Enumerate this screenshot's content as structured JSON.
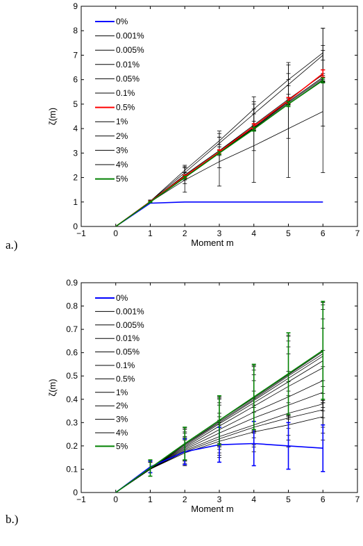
{
  "chart_data": [
    {
      "type": "line",
      "panel_label": "a.)",
      "xlabel": "Moment m",
      "ylabel": "ζ(m)",
      "xlim": [
        -1,
        7
      ],
      "ylim": [
        0,
        9
      ],
      "x_ticks": [
        "−1",
        "0",
        "1",
        "2",
        "3",
        "4",
        "5",
        "6",
        "7"
      ],
      "y_ticks": [
        "0",
        "1",
        "2",
        "3",
        "4",
        "5",
        "6",
        "7",
        "8",
        "9"
      ],
      "legend_position": "top-left",
      "x": [
        0,
        1,
        2,
        3,
        4,
        5,
        6
      ],
      "series": [
        {
          "name": "0%",
          "color": "#0000ff",
          "values": [
            0,
            0.95,
            1.0,
            1.0,
            1.0,
            1.0,
            1.0
          ]
        },
        {
          "name": "0.001%",
          "color": "#000000",
          "values": [
            0,
            1.0,
            1.9,
            2.65,
            3.3,
            4.0,
            4.7
          ],
          "errors": [
            0,
            0.05,
            0.5,
            1.0,
            1.5,
            2.0,
            2.5
          ]
        },
        {
          "name": "0.005%",
          "color": "#000000",
          "values": [
            0,
            1.02,
            2.1,
            3.1,
            4.1,
            5.1,
            6.1
          ],
          "errors": [
            0,
            0.05,
            0.35,
            0.7,
            1.0,
            1.5,
            2.0
          ]
        },
        {
          "name": "0.01%",
          "color": "#000000",
          "values": [
            0,
            1.03,
            2.2,
            3.4,
            4.6,
            5.8,
            7.0
          ],
          "errors": [
            0,
            0.05,
            0.3,
            0.5,
            0.7,
            0.9,
            1.1
          ]
        },
        {
          "name": "0.05%",
          "color": "#000000",
          "values": [
            0,
            1.03,
            2.3,
            3.5,
            4.8,
            6.0,
            7.1
          ],
          "errors": [
            0,
            0.05,
            0.1,
            0.15,
            0.2,
            0.25,
            0.3
          ]
        },
        {
          "name": "0.1%",
          "color": "#000000",
          "values": [
            0,
            1.02,
            2.1,
            3.1,
            4.15,
            5.2,
            6.2
          ],
          "errors": [
            0,
            0.03,
            0.1,
            0.15,
            0.15,
            0.2,
            0.2
          ]
        },
        {
          "name": "0.5%",
          "color": "#ff0000",
          "values": [
            0,
            1.02,
            2.05,
            3.05,
            4.1,
            5.15,
            6.25
          ],
          "errors": [
            0,
            0.02,
            0.05,
            0.08,
            0.1,
            0.12,
            0.15
          ]
        },
        {
          "name": "1%",
          "color": "#000000",
          "values": [
            0,
            1.02,
            2.03,
            3.03,
            4.05,
            5.1,
            6.1
          ],
          "errors": [
            0,
            0.02,
            0.05,
            0.08,
            0.1,
            0.12,
            0.15
          ]
        },
        {
          "name": "2%",
          "color": "#000000",
          "values": [
            0,
            1.01,
            2.02,
            3.02,
            4.03,
            5.05,
            6.05
          ],
          "errors": [
            0,
            0.02,
            0.05,
            0.05,
            0.08,
            0.1,
            0.12
          ]
        },
        {
          "name": "3%",
          "color": "#000000",
          "values": [
            0,
            1.0,
            2.0,
            3.0,
            4.0,
            5.0,
            6.0
          ],
          "errors": [
            0,
            0.02,
            0.05,
            0.05,
            0.08,
            0.1,
            0.1
          ]
        },
        {
          "name": "4%",
          "color": "#000000",
          "values": [
            0,
            1.0,
            2.0,
            3.0,
            4.0,
            5.0,
            6.0
          ],
          "errors": [
            0,
            0.02,
            0.05,
            0.05,
            0.08,
            0.1,
            0.1
          ]
        },
        {
          "name": "5%",
          "color": "#008000",
          "values": [
            0,
            1.0,
            2.0,
            3.0,
            3.98,
            5.0,
            5.97
          ],
          "errors": [
            0,
            0.02,
            0.05,
            0.05,
            0.08,
            0.1,
            0.1
          ]
        }
      ]
    },
    {
      "type": "line",
      "panel_label": "b.)",
      "xlabel": "Moment m",
      "ylabel": "ζ(m)",
      "xlim": [
        -1,
        7
      ],
      "ylim": [
        0,
        0.9
      ],
      "x_ticks": [
        "−1",
        "0",
        "1",
        "2",
        "3",
        "4",
        "5",
        "6",
        "7"
      ],
      "y_ticks": [
        "0",
        "0.1",
        "0.2",
        "0.3",
        "0.4",
        "0.5",
        "0.6",
        "0.7",
        "0.8",
        "0.9"
      ],
      "legend_position": "top-left",
      "x": [
        0,
        1,
        2,
        3,
        4,
        5,
        6
      ],
      "series": [
        {
          "name": "0%",
          "color": "#0000ff",
          "values": [
            0,
            0.11,
            0.175,
            0.205,
            0.21,
            0.2,
            0.19
          ],
          "errors": [
            0,
            0.025,
            0.055,
            0.075,
            0.095,
            0.1,
            0.1
          ]
        },
        {
          "name": "0.001%",
          "color": "#000000",
          "values": [
            0,
            0.1,
            0.17,
            0.22,
            0.26,
            0.29,
            0.325
          ],
          "errors": [
            0,
            0.03,
            0.055,
            0.07,
            0.085,
            0.095,
            0.1
          ]
        },
        {
          "name": "0.005%",
          "color": "#000000",
          "values": [
            0,
            0.1,
            0.175,
            0.23,
            0.28,
            0.32,
            0.355
          ],
          "errors": [
            0,
            0.03,
            0.055,
            0.07,
            0.085,
            0.095,
            0.1
          ]
        },
        {
          "name": "0.01%",
          "color": "#000000",
          "values": [
            0,
            0.1,
            0.18,
            0.24,
            0.29,
            0.34,
            0.38
          ],
          "errors": [
            0,
            0.03,
            0.055,
            0.07,
            0.085,
            0.095,
            0.1
          ]
        },
        {
          "name": "0.05%",
          "color": "#000000",
          "values": [
            0,
            0.1,
            0.185,
            0.255,
            0.32,
            0.375,
            0.43
          ],
          "errors": [
            0,
            0.03,
            0.05,
            0.07,
            0.085,
            0.1,
            0.11
          ]
        },
        {
          "name": "0.1%",
          "color": "#000000",
          "values": [
            0,
            0.1,
            0.19,
            0.27,
            0.345,
            0.41,
            0.48
          ],
          "errors": [
            0,
            0.03,
            0.05,
            0.07,
            0.09,
            0.11,
            0.13
          ]
        },
        {
          "name": "0.5%",
          "color": "#000000",
          "values": [
            0,
            0.1,
            0.195,
            0.285,
            0.37,
            0.455,
            0.535
          ],
          "errors": [
            0,
            0.03,
            0.06,
            0.09,
            0.11,
            0.14,
            0.17
          ]
        },
        {
          "name": "1%",
          "color": "#000000",
          "values": [
            0,
            0.1,
            0.2,
            0.295,
            0.385,
            0.475,
            0.565
          ],
          "errors": [
            0,
            0.03,
            0.06,
            0.09,
            0.12,
            0.15,
            0.18
          ]
        },
        {
          "name": "2%",
          "color": "#000000",
          "values": [
            0,
            0.1,
            0.205,
            0.3,
            0.395,
            0.49,
            0.585
          ],
          "errors": [
            0,
            0.03,
            0.065,
            0.1,
            0.13,
            0.16,
            0.2
          ]
        },
        {
          "name": "3%",
          "color": "#000000",
          "values": [
            0,
            0.1,
            0.205,
            0.305,
            0.4,
            0.5,
            0.595
          ],
          "errors": [
            0,
            0.03,
            0.07,
            0.1,
            0.14,
            0.17,
            0.21
          ]
        },
        {
          "name": "4%",
          "color": "#000000",
          "values": [
            0,
            0.1,
            0.21,
            0.31,
            0.405,
            0.505,
            0.605
          ],
          "errors": [
            0,
            0.03,
            0.07,
            0.1,
            0.14,
            0.17,
            0.21
          ]
        },
        {
          "name": "5%",
          "color": "#008000",
          "values": [
            0,
            0.105,
            0.21,
            0.31,
            0.41,
            0.51,
            0.61
          ],
          "errors": [
            0,
            0.035,
            0.07,
            0.105,
            0.14,
            0.175,
            0.21
          ]
        }
      ]
    }
  ]
}
